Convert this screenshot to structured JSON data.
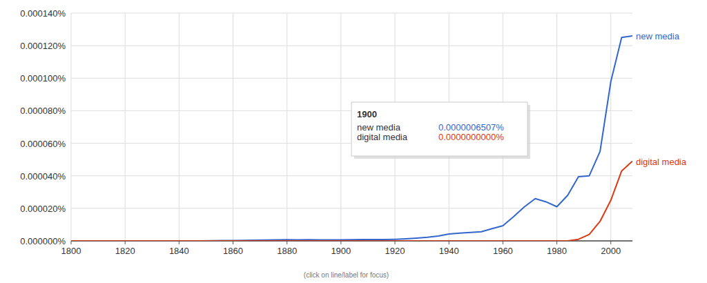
{
  "chart_data": {
    "type": "line",
    "x": [
      1800,
      1804,
      1808,
      1812,
      1816,
      1820,
      1824,
      1828,
      1832,
      1836,
      1840,
      1844,
      1848,
      1852,
      1856,
      1860,
      1864,
      1868,
      1872,
      1876,
      1880,
      1884,
      1888,
      1892,
      1896,
      1900,
      1904,
      1908,
      1912,
      1916,
      1920,
      1924,
      1928,
      1932,
      1936,
      1940,
      1944,
      1948,
      1952,
      1956,
      1960,
      1964,
      1968,
      1972,
      1976,
      1980,
      1984,
      1988,
      1992,
      1996,
      2000,
      2004,
      2008
    ],
    "series": [
      {
        "name": "new media",
        "color": "#3366cc",
        "values": [
          0,
          0,
          0,
          0,
          0,
          0,
          0,
          0,
          0,
          0,
          0,
          0,
          0,
          1e-07,
          2e-07,
          2e-07,
          3e-07,
          4e-07,
          5e-07,
          6e-07,
          7e-07,
          6e-07,
          7e-07,
          6e-07,
          6e-07,
          6.5e-07,
          7e-07,
          8e-07,
          9e-07,
          8e-07,
          1e-06,
          1.3e-06,
          1.7e-06,
          2.2e-06,
          3e-06,
          4.2e-06,
          4.8e-06,
          5.2e-06,
          5.6e-06,
          7.5e-06,
          9.3e-06,
          1.5e-05,
          2.1e-05,
          2.6e-05,
          2.4e-05,
          2.1e-05,
          2.8e-05,
          3.95e-05,
          4e-05,
          5.5e-05,
          9.8e-05,
          0.000125,
          0.000126
        ]
      },
      {
        "name": "digital media",
        "color": "#dc3912",
        "values": [
          0,
          0,
          0,
          0,
          0,
          0,
          0,
          0,
          0,
          0,
          0,
          0,
          0,
          0,
          0,
          0,
          0,
          0,
          0,
          0,
          0,
          0,
          0,
          0,
          0,
          0,
          0,
          0,
          0,
          0,
          0,
          0,
          0,
          0,
          0,
          0,
          0,
          0,
          0,
          0,
          0,
          0,
          0,
          0,
          0,
          0,
          0,
          1e-06,
          4e-06,
          1.2e-05,
          2.5e-05,
          4.3e-05,
          4.9e-05
        ]
      }
    ],
    "xlim": [
      1800,
      2008
    ],
    "xticks": [
      1800,
      1820,
      1840,
      1860,
      1880,
      1900,
      1920,
      1940,
      1960,
      1980,
      2000
    ],
    "ylim": [
      0,
      0.00014
    ],
    "yticks": [
      {
        "value": 0,
        "label": "0.000000%"
      },
      {
        "value": 2e-05,
        "label": "0.000020%"
      },
      {
        "value": 4e-05,
        "label": "0.000040%"
      },
      {
        "value": 6e-05,
        "label": "0.000060%"
      },
      {
        "value": 8e-05,
        "label": "0.000080%"
      },
      {
        "value": 0.0001,
        "label": "0.000100%"
      },
      {
        "value": 0.00012,
        "label": "0.000120%"
      },
      {
        "value": 0.00014,
        "label": "0.000140%"
      }
    ],
    "grid": true,
    "tooltip": {
      "title": "1900",
      "values": [
        "0.0000006507%",
        "0.0000000000%"
      ]
    },
    "note": "(click on line/label for focus)"
  }
}
